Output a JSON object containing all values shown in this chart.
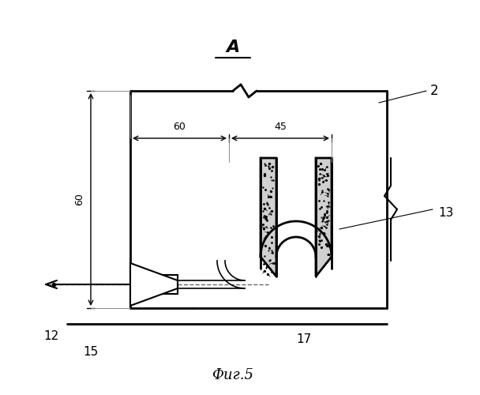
{
  "title": "Фиг.5",
  "label_A": "А",
  "bg_color": "#ffffff",
  "line_color": "#000000",
  "dim_60_x": "60",
  "dim_45_x": "45",
  "dim_60_y": "60",
  "label_2": "2",
  "label_12": "12",
  "label_13": "13",
  "label_15": "15",
  "label_17": "17"
}
